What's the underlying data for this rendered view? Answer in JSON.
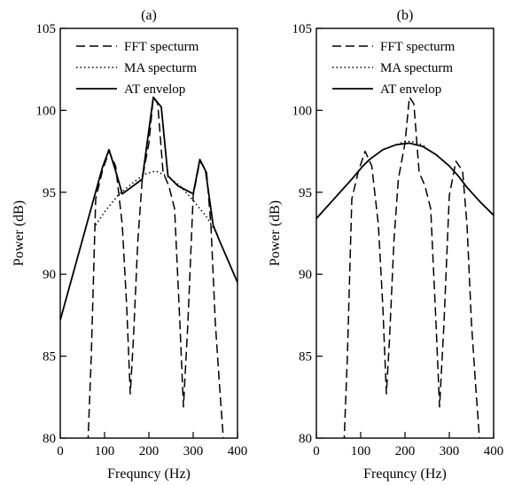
{
  "chart_data": [
    {
      "type": "line",
      "title": "(a)",
      "xlabel": "Frequncy (Hz)",
      "ylabel": "Power (dB)",
      "xlim": [
        0,
        400
      ],
      "ylim": [
        80,
        105
      ],
      "xticks": [
        "0",
        "100",
        "200",
        "300",
        "400"
      ],
      "yticks": [
        "80",
        "85",
        "90",
        "95",
        "100",
        "105"
      ],
      "legend_position": "top",
      "grid": false,
      "series": [
        {
          "name": "FFT specturm",
          "style": "dashed",
          "x": [
            60,
            70,
            80,
            95,
            110,
            125,
            140,
            150,
            158,
            165,
            175,
            185,
            200,
            210,
            220,
            232,
            245,
            258,
            270,
            278,
            288,
            300,
            315,
            330,
            340,
            350,
            360,
            368,
            375
          ],
          "y": [
            78,
            85,
            94.6,
            96.3,
            97.5,
            96.6,
            93.0,
            88.0,
            82.7,
            86.0,
            92.0,
            95.8,
            98.0,
            100.8,
            100.4,
            96.2,
            95.4,
            94.0,
            87.0,
            81.9,
            87.0,
            94.8,
            96.9,
            96.3,
            93.0,
            87.0,
            83.0,
            80.0,
            78.0
          ]
        },
        {
          "name": "MA specturm",
          "style": "dotted",
          "x": [
            80,
            100,
            130,
            160,
            190,
            215,
            240,
            270,
            300,
            330,
            355
          ],
          "y": [
            93.0,
            93.8,
            94.8,
            95.5,
            96.1,
            96.3,
            96.0,
            95.4,
            94.5,
            93.5,
            92.4
          ],
          "note": "dotted line is drawn only between about 80 and 355 Hz"
        },
        {
          "name": "AT envelop",
          "style": "solid",
          "x": [
            0,
            95,
            110,
            125,
            140,
            185,
            210,
            228,
            243,
            265,
            300,
            315,
            328,
            345,
            360,
            400
          ],
          "y": [
            87.2,
            96.5,
            97.6,
            96.3,
            94.9,
            95.8,
            100.8,
            100.2,
            96.0,
            95.4,
            94.9,
            97.0,
            96.3,
            93.0,
            92.0,
            89.5
          ]
        }
      ]
    },
    {
      "type": "line",
      "title": "(b)",
      "xlabel": "Frequncy (Hz)",
      "ylabel": "Power (dB)",
      "xlim": [
        0,
        400
      ],
      "ylim": [
        80,
        105
      ],
      "xticks": [
        "0",
        "100",
        "200",
        "300",
        "400"
      ],
      "yticks": [
        "80",
        "85",
        "90",
        "95",
        "100",
        "105"
      ],
      "legend_position": "top",
      "grid": false,
      "series": [
        {
          "name": "FFT specturm",
          "style": "dashed",
          "x": [
            60,
            70,
            80,
            95,
            110,
            125,
            140,
            150,
            158,
            165,
            175,
            185,
            200,
            210,
            220,
            232,
            245,
            258,
            270,
            278,
            288,
            300,
            315,
            330,
            340,
            350,
            360,
            368,
            375
          ],
          "y": [
            78,
            85,
            94.6,
            96.3,
            97.5,
            96.6,
            93.0,
            88.0,
            82.7,
            86.0,
            92.0,
            95.8,
            98.0,
            100.8,
            100.4,
            96.2,
            95.4,
            94.0,
            87.0,
            81.9,
            87.0,
            94.8,
            96.9,
            96.3,
            93.0,
            87.0,
            83.0,
            80.0,
            78.0
          ]
        },
        {
          "name": "MA specturm",
          "style": "dotted",
          "x": [
            190,
            200,
            215,
            230,
            245
          ],
          "y": [
            98.0,
            98.1,
            98.1,
            98.0,
            97.8
          ],
          "note": "dotted plateau visible near the peak"
        },
        {
          "name": "AT envelop",
          "style": "solid",
          "x": [
            0,
            40,
            80,
            105,
            120,
            150,
            180,
            210,
            240,
            270,
            300,
            320,
            340,
            370,
            400
          ],
          "y": [
            93.4,
            94.6,
            95.8,
            96.6,
            97.0,
            97.6,
            97.9,
            98.0,
            97.8,
            97.3,
            96.6,
            96.0,
            95.3,
            94.4,
            93.6
          ]
        }
      ]
    }
  ]
}
